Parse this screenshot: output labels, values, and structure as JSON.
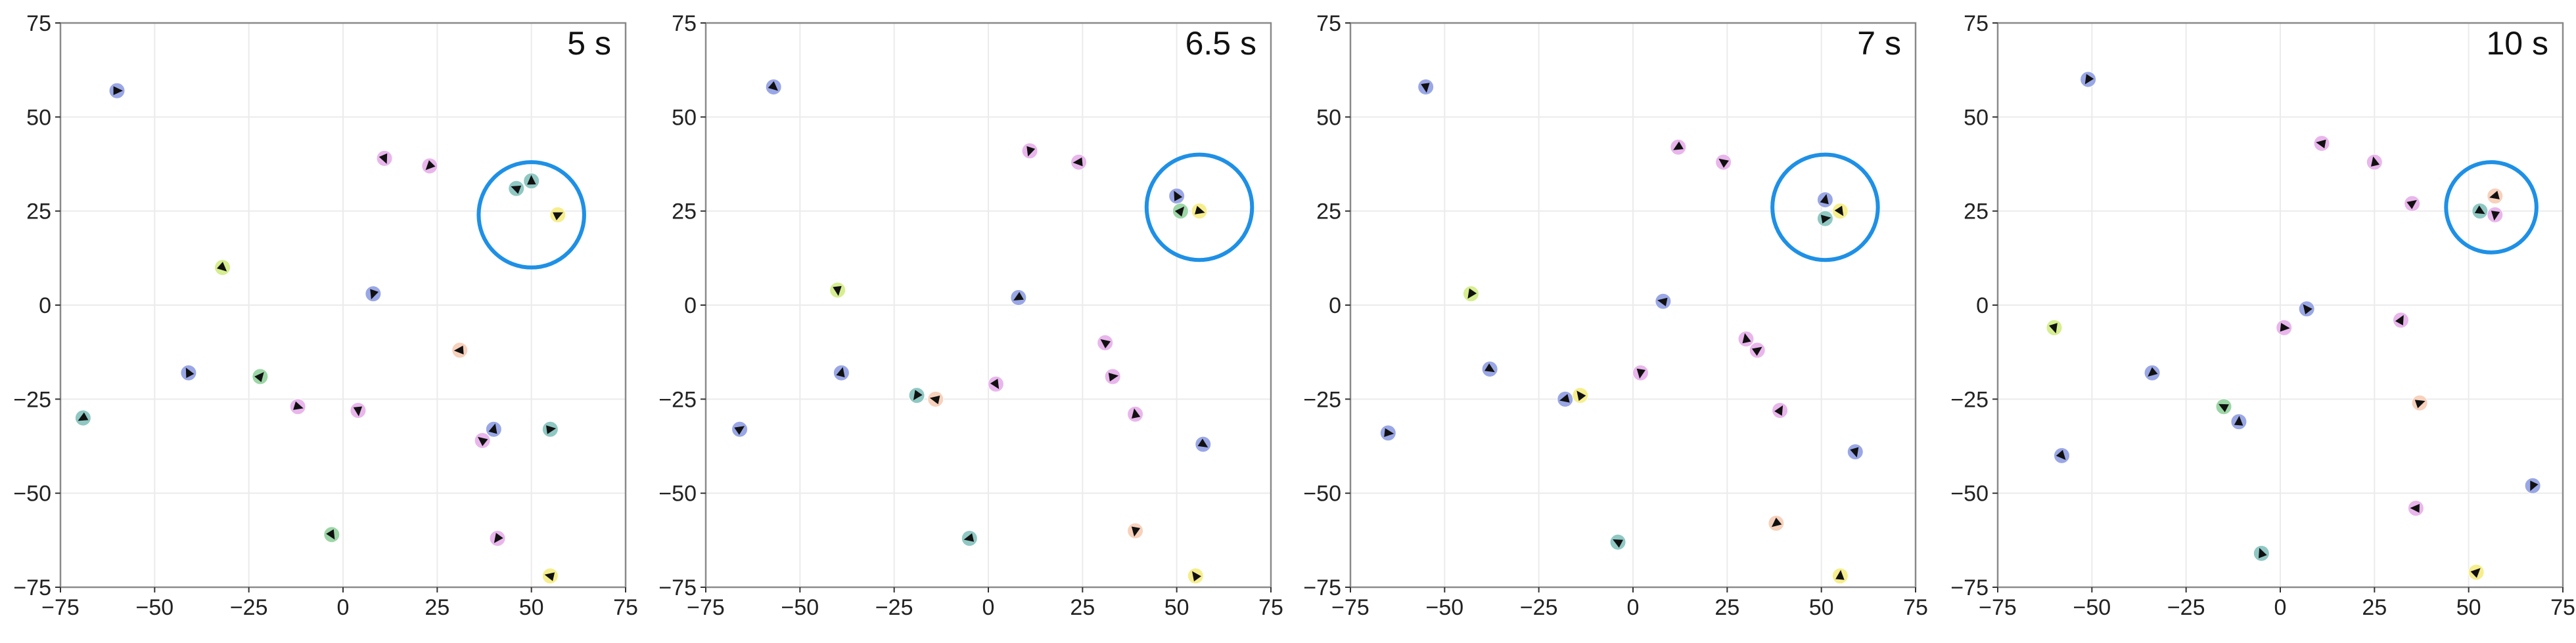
{
  "chart_data": [
    {
      "type": "scatter",
      "title": "5 s",
      "xlim": [
        -75,
        75
      ],
      "ylim": [
        -75,
        75
      ],
      "xticks": [
        "−75",
        "−50",
        "−25",
        "0",
        "25",
        "50",
        "75"
      ],
      "yticks": [
        "75",
        "50",
        "25",
        "0",
        "−25",
        "−50",
        "−75"
      ],
      "grid": true,
      "highlight_circle": {
        "x": 50,
        "y": 24,
        "r": 14
      },
      "points": [
        {
          "x": -60,
          "y": 57,
          "c": "#9aa7e6"
        },
        {
          "x": 11,
          "y": 39,
          "c": "#e9b6ec"
        },
        {
          "x": 23,
          "y": 37,
          "c": "#e9b6ec"
        },
        {
          "x": 46,
          "y": 31,
          "c": "#8fc8c3"
        },
        {
          "x": 50,
          "y": 33,
          "c": "#8fc8c3"
        },
        {
          "x": 57,
          "y": 24,
          "c": "#f6ee8c"
        },
        {
          "x": -32,
          "y": 10,
          "c": "#d6ee8f"
        },
        {
          "x": 8,
          "y": 3,
          "c": "#9aa7e6"
        },
        {
          "x": 31,
          "y": -12,
          "c": "#f7d1bc"
        },
        {
          "x": -41,
          "y": -18,
          "c": "#9aa7e6"
        },
        {
          "x": -22,
          "y": -19,
          "c": "#9cd6a6"
        },
        {
          "x": -12,
          "y": -27,
          "c": "#e9b6ec"
        },
        {
          "x": 4,
          "y": -28,
          "c": "#e9b6ec"
        },
        {
          "x": -69,
          "y": -30,
          "c": "#8fc8c3"
        },
        {
          "x": 37,
          "y": -36,
          "c": "#e9b6ec"
        },
        {
          "x": 40,
          "y": -33,
          "c": "#9aa7e6"
        },
        {
          "x": 55,
          "y": -33,
          "c": "#8fc8c3"
        },
        {
          "x": -3,
          "y": -61,
          "c": "#9cd6a6"
        },
        {
          "x": 41,
          "y": -62,
          "c": "#e9b6ec"
        },
        {
          "x": 55,
          "y": -72,
          "c": "#f6ee8c"
        }
      ]
    },
    {
      "type": "scatter",
      "title": "6.5 s",
      "xlim": [
        -75,
        75
      ],
      "ylim": [
        -75,
        75
      ],
      "xticks": [
        "−75",
        "−50",
        "−25",
        "0",
        "25",
        "50",
        "75"
      ],
      "yticks": [
        "75",
        "50",
        "25",
        "0",
        "−25",
        "−50",
        "−75"
      ],
      "grid": true,
      "highlight_circle": {
        "x": 56,
        "y": 26,
        "r": 14
      },
      "points": [
        {
          "x": -57,
          "y": 58,
          "c": "#9aa7e6"
        },
        {
          "x": 11,
          "y": 41,
          "c": "#e9b6ec"
        },
        {
          "x": 24,
          "y": 38,
          "c": "#e9b6ec"
        },
        {
          "x": 50,
          "y": 29,
          "c": "#9aa7e6"
        },
        {
          "x": 51,
          "y": 25,
          "c": "#9cd6a6"
        },
        {
          "x": 56,
          "y": 25,
          "c": "#f6ee8c"
        },
        {
          "x": -40,
          "y": 4,
          "c": "#d6ee8f"
        },
        {
          "x": 8,
          "y": 2,
          "c": "#9aa7e6"
        },
        {
          "x": 31,
          "y": -10,
          "c": "#e9b6ec"
        },
        {
          "x": -39,
          "y": -18,
          "c": "#9aa7e6"
        },
        {
          "x": 33,
          "y": -19,
          "c": "#e9b6ec"
        },
        {
          "x": 2,
          "y": -21,
          "c": "#e9b6ec"
        },
        {
          "x": -19,
          "y": -24,
          "c": "#8fc8c3"
        },
        {
          "x": -14,
          "y": -25,
          "c": "#f7d1bc"
        },
        {
          "x": 39,
          "y": -29,
          "c": "#e9b6ec"
        },
        {
          "x": -66,
          "y": -33,
          "c": "#9aa7e6"
        },
        {
          "x": 57,
          "y": -37,
          "c": "#9aa7e6"
        },
        {
          "x": 39,
          "y": -60,
          "c": "#f7d1bc"
        },
        {
          "x": -5,
          "y": -62,
          "c": "#8fc8c3"
        },
        {
          "x": 55,
          "y": -72,
          "c": "#f6ee8c"
        }
      ]
    },
    {
      "type": "scatter",
      "title": "7 s",
      "xlim": [
        -75,
        75
      ],
      "ylim": [
        -75,
        75
      ],
      "xticks": [
        "−75",
        "−50",
        "−25",
        "0",
        "25",
        "50",
        "75"
      ],
      "yticks": [
        "75",
        "50",
        "25",
        "0",
        "−25",
        "−50",
        "−75"
      ],
      "grid": true,
      "highlight_circle": {
        "x": 51,
        "y": 26,
        "r": 14
      },
      "points": [
        {
          "x": -55,
          "y": 58,
          "c": "#9aa7e6"
        },
        {
          "x": 12,
          "y": 42,
          "c": "#e9b6ec"
        },
        {
          "x": 24,
          "y": 38,
          "c": "#e9b6ec"
        },
        {
          "x": 51,
          "y": 28,
          "c": "#9aa7e6"
        },
        {
          "x": 51,
          "y": 23,
          "c": "#8fc8c3"
        },
        {
          "x": 55,
          "y": 25,
          "c": "#f6ee8c"
        },
        {
          "x": -43,
          "y": 3,
          "c": "#d6ee8f"
        },
        {
          "x": 8,
          "y": 1,
          "c": "#9aa7e6"
        },
        {
          "x": 30,
          "y": -9,
          "c": "#e9b6ec"
        },
        {
          "x": 33,
          "y": -12,
          "c": "#e9b6ec"
        },
        {
          "x": -38,
          "y": -17,
          "c": "#9aa7e6"
        },
        {
          "x": 2,
          "y": -18,
          "c": "#e9b6ec"
        },
        {
          "x": -18,
          "y": -25,
          "c": "#9aa7e6"
        },
        {
          "x": -14,
          "y": -24,
          "c": "#f6ee8c"
        },
        {
          "x": 39,
          "y": -28,
          "c": "#e9b6ec"
        },
        {
          "x": -65,
          "y": -34,
          "c": "#9aa7e6"
        },
        {
          "x": 59,
          "y": -39,
          "c": "#9aa7e6"
        },
        {
          "x": 38,
          "y": -58,
          "c": "#f7d1bc"
        },
        {
          "x": -4,
          "y": -63,
          "c": "#8fc8c3"
        },
        {
          "x": 55,
          "y": -72,
          "c": "#f6ee8c"
        }
      ]
    },
    {
      "type": "scatter",
      "title": "10 s",
      "xlim": [
        -75,
        75
      ],
      "ylim": [
        -75,
        75
      ],
      "xticks": [
        "−75",
        "−50",
        "−25",
        "0",
        "25",
        "50",
        "75"
      ],
      "yticks": [
        "75",
        "50",
        "25",
        "0",
        "−25",
        "−50",
        "−75"
      ],
      "grid": true,
      "highlight_circle": {
        "x": 56,
        "y": 26,
        "r": 12
      },
      "points": [
        {
          "x": -51,
          "y": 60,
          "c": "#9aa7e6"
        },
        {
          "x": 11,
          "y": 43,
          "c": "#e9b6ec"
        },
        {
          "x": 25,
          "y": 38,
          "c": "#e9b6ec"
        },
        {
          "x": 35,
          "y": 27,
          "c": "#e9b6ec"
        },
        {
          "x": 53,
          "y": 25,
          "c": "#8fc8c3"
        },
        {
          "x": 57,
          "y": 24,
          "c": "#e9b6ec"
        },
        {
          "x": 57,
          "y": 29,
          "c": "#f7d1bc"
        },
        {
          "x": 7,
          "y": -1,
          "c": "#9aa7e6"
        },
        {
          "x": 32,
          "y": -4,
          "c": "#e9b6ec"
        },
        {
          "x": 1,
          "y": -6,
          "c": "#e9b6ec"
        },
        {
          "x": -60,
          "y": -6,
          "c": "#d6ee8f"
        },
        {
          "x": -34,
          "y": -18,
          "c": "#9aa7e6"
        },
        {
          "x": -15,
          "y": -27,
          "c": "#9cd6a6"
        },
        {
          "x": -11,
          "y": -31,
          "c": "#9aa7e6"
        },
        {
          "x": 37,
          "y": -26,
          "c": "#f7d1bc"
        },
        {
          "x": -58,
          "y": -40,
          "c": "#9aa7e6"
        },
        {
          "x": 67,
          "y": -48,
          "c": "#9aa7e6"
        },
        {
          "x": 36,
          "y": -54,
          "c": "#e9b6ec"
        },
        {
          "x": -5,
          "y": -66,
          "c": "#8fc8c3"
        },
        {
          "x": 52,
          "y": -71,
          "c": "#f6ee8c"
        }
      ]
    }
  ]
}
